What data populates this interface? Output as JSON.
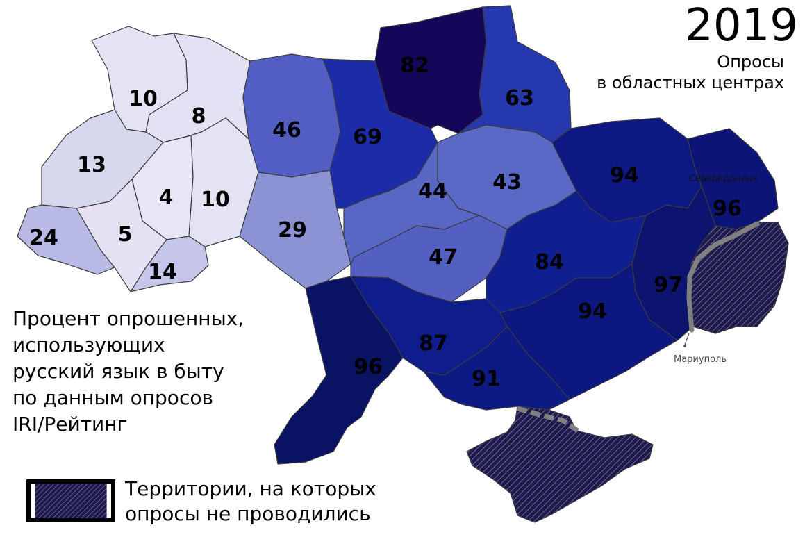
{
  "header": {
    "year": "2019",
    "subtitle_line1": "Опросы",
    "subtitle_line2": "в областных центрах"
  },
  "caption": {
    "line1": "Процент опрошенных,",
    "line2": "использующих",
    "line3": "русский язык в быту",
    "line4": "по данным опросов",
    "line5": "IRI/Рейтинг"
  },
  "legend": {
    "line1": "Территории, на которых",
    "line2": "опросы не проводились"
  },
  "cities": {
    "severodonetsk": "Северодонецк",
    "mariupol": "Мариуполь"
  },
  "colors": {
    "lowest": "#e6e4f4",
    "highest": "#120050",
    "no_survey_fill": "#1e1a4a",
    "no_survey_hatch": "#8a8ac0",
    "front_line": "#808080"
  },
  "map_values": {
    "volyn": "10",
    "rivne": "8",
    "lviv": "13",
    "ternopil": "4",
    "khmelnytskyi": "10",
    "zakarpattia": "24",
    "ivano_frankivsk": "5",
    "chernivtsi": "14",
    "zhytomyr": "46",
    "vinnytsia": "29",
    "kyiv": "69",
    "chernihiv": "82",
    "sumy": "63",
    "poltava": "43",
    "cherkasy": "44",
    "kirovohrad": "47",
    "kharkiv": "94",
    "luhansk": "96",
    "donetsk": "97",
    "dnipropetrovsk": "84",
    "zaporizhzhia": "94",
    "mykolaiv": "87",
    "odesa": "96",
    "kherson": "91"
  }
}
